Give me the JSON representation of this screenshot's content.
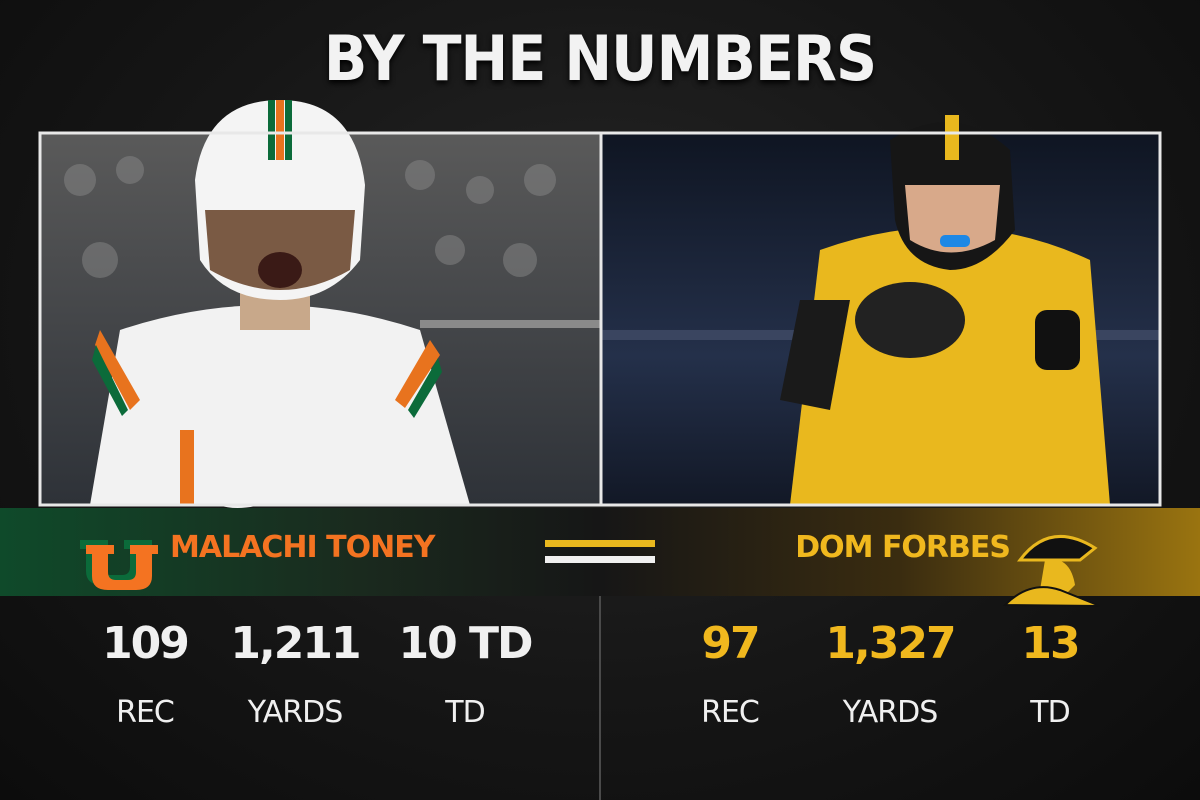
{
  "header": {
    "title": "BY THE NUMBERS"
  },
  "players": [
    {
      "name": "MALACHI TONEY",
      "stats": [
        {
          "value": "109",
          "label": "REC"
        },
        {
          "value": "1,211",
          "label": "YARDS"
        },
        {
          "value": "10 TD",
          "label": "TD"
        }
      ]
    },
    {
      "name": "DOM FORBES",
      "stats": [
        {
          "value": "97",
          "label": "REC"
        },
        {
          "value": "1,327",
          "label": "YARDS"
        },
        {
          "value": "13",
          "label": "TD"
        }
      ]
    }
  ]
}
